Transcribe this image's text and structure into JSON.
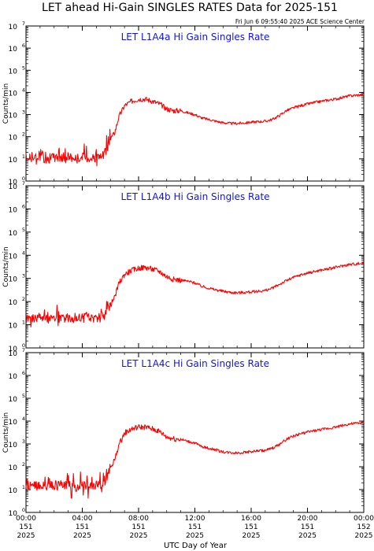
{
  "title": "LET ahead Hi-Gain SINGLES RATES Data for 2025-151",
  "timestamp": "Fri Jun  6 09:55:40 2025 ACE Science Center",
  "colors": {
    "series": "#ff0000",
    "panel_title": "#1414e6",
    "axes": "#000000",
    "background": "#ffffff"
  },
  "ylabel": "Counts/min",
  "xlabel": "UTC Day of Year",
  "x_ticks": [
    {
      "hh": "00:00",
      "doy": "151",
      "year": "2025"
    },
    {
      "hh": "04:00",
      "doy": "151",
      "year": "2025"
    },
    {
      "hh": "08:00",
      "doy": "151",
      "year": "2025"
    },
    {
      "hh": "12:00",
      "doy": "151",
      "year": "2025"
    },
    {
      "hh": "16:00",
      "doy": "151",
      "year": "2025"
    },
    {
      "hh": "20:00",
      "doy": "151",
      "year": "2025"
    },
    {
      "hh": "00:00",
      "doy": "152",
      "year": "2025"
    }
  ],
  "y_exponents": [
    "0",
    "1",
    "2",
    "3",
    "4",
    "5",
    "6",
    "7"
  ],
  "chart_data": [
    {
      "type": "line",
      "title": "LET L1A4a Hi Gain Singles Rate",
      "ylabel": "Counts/min",
      "yscale": "log",
      "ylim": [
        1,
        10000000
      ],
      "xlim_hours": [
        0,
        24
      ],
      "series": [
        {
          "x": [
            0,
            0.5,
            1,
            1.5,
            2,
            2.5,
            3,
            3.5,
            4,
            4.5,
            5,
            5.5,
            5.8,
            6,
            6.3,
            6.6,
            7,
            7.5,
            8,
            8.5,
            9,
            9.5,
            10,
            10.5,
            11,
            11.5,
            12,
            12.5,
            13,
            13.5,
            14,
            14.5,
            15,
            15.5,
            16,
            16.5,
            17,
            17.5,
            18,
            18.5,
            19,
            19.5,
            20,
            20.5,
            21,
            21.5,
            22,
            22.5,
            23,
            23.5,
            24
          ],
          "y": [
            12,
            11,
            13,
            10,
            12,
            11,
            13,
            10,
            12,
            11,
            12,
            14,
            30,
            80,
            150,
            800,
            2500,
            4000,
            5000,
            5000,
            4000,
            3000,
            1800,
            1500,
            1500,
            1200,
            1000,
            700,
            600,
            500,
            430,
            400,
            400,
            420,
            450,
            480,
            500,
            600,
            900,
            1500,
            2000,
            2500,
            3000,
            3500,
            4000,
            4500,
            5000,
            6000,
            7000,
            7500,
            8000
          ]
        }
      ]
    },
    {
      "type": "line",
      "title": "LET L1A4b Hi Gain Singles Rate",
      "ylabel": "Counts/min",
      "yscale": "log",
      "ylim": [
        1,
        10000000
      ],
      "xlim_hours": [
        0,
        24
      ],
      "series": [
        {
          "x": [
            0,
            0.5,
            1,
            1.5,
            2,
            2.5,
            3,
            3.5,
            4,
            4.5,
            5,
            5.5,
            5.8,
            6,
            6.3,
            6.6,
            7,
            7.5,
            8,
            8.5,
            9,
            9.5,
            10,
            10.5,
            11,
            11.5,
            12,
            12.5,
            13,
            13.5,
            14,
            14.5,
            15,
            15.5,
            16,
            16.5,
            17,
            17.5,
            18,
            18.5,
            19,
            19.5,
            20,
            20.5,
            21,
            21.5,
            22,
            22.5,
            23,
            23.5,
            24
          ],
          "y": [
            20,
            18,
            21,
            19,
            22,
            18,
            20,
            19,
            21,
            20,
            20,
            22,
            35,
            70,
            150,
            600,
            1500,
            2200,
            2800,
            3000,
            2500,
            2000,
            1200,
            900,
            850,
            750,
            650,
            450,
            380,
            320,
            280,
            250,
            240,
            250,
            260,
            280,
            300,
            380,
            550,
            800,
            1100,
            1400,
            1700,
            2000,
            2300,
            2600,
            3000,
            3500,
            4000,
            4300,
            4500
          ]
        }
      ]
    },
    {
      "type": "line",
      "title": "LET L1A4c Hi Gain Singles Rate",
      "ylabel": "Counts/min",
      "yscale": "log",
      "ylim": [
        1,
        10000000
      ],
      "xlim_hours": [
        0,
        24
      ],
      "series": [
        {
          "x": [
            0,
            0.5,
            1,
            1.5,
            2,
            2.5,
            3,
            3.5,
            4,
            4.5,
            5,
            5.5,
            5.8,
            6,
            6.3,
            6.6,
            7,
            7.5,
            8,
            8.5,
            9,
            9.5,
            10,
            10.5,
            11,
            11.5,
            12,
            12.5,
            13,
            13.5,
            14,
            14.5,
            15,
            15.5,
            16,
            16.5,
            17,
            17.5,
            18,
            18.5,
            19,
            19.5,
            20,
            20.5,
            21,
            21.5,
            22,
            22.5,
            23,
            23.5,
            24
          ],
          "y": [
            15,
            14,
            16,
            13,
            15,
            14,
            16,
            13,
            15,
            14,
            15,
            18,
            40,
            90,
            200,
            900,
            3000,
            4500,
            5500,
            5500,
            4500,
            3500,
            2000,
            1700,
            1600,
            1300,
            1100,
            750,
            650,
            550,
            450,
            420,
            410,
            430,
            460,
            500,
            520,
            650,
            950,
            1600,
            2200,
            2800,
            3300,
            3800,
            4300,
            4800,
            5500,
            6500,
            7500,
            8000,
            8500
          ]
        }
      ]
    }
  ]
}
